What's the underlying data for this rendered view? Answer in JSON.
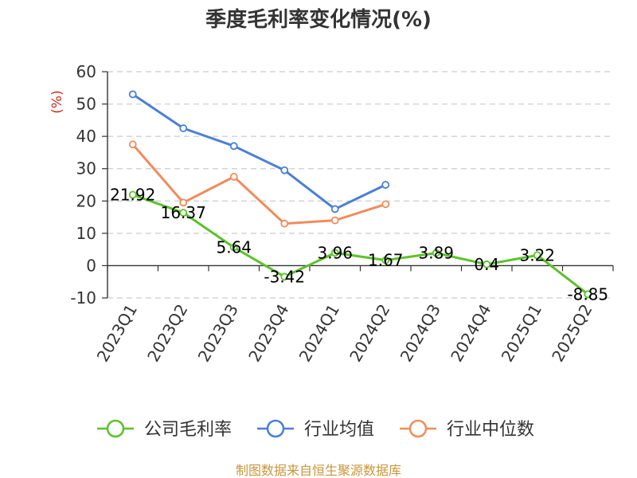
{
  "chart_data": {
    "type": "line",
    "title": "季度毛利率变化情况(%)",
    "ylabel": "(%)",
    "categories": [
      "2023Q1",
      "2023Q2",
      "2023Q3",
      "2023Q4",
      "2024Q1",
      "2024Q2",
      "2024Q3",
      "2024Q4",
      "2025Q1",
      "2025Q2"
    ],
    "ylim": [
      -10,
      60
    ],
    "yticks": [
      -10,
      0,
      10,
      20,
      30,
      40,
      50,
      60
    ],
    "grid": true,
    "legend_position": "bottom",
    "series": [
      {
        "name": "公司毛利率",
        "color": "#5cc22a",
        "values": [
          21.92,
          16.37,
          5.64,
          -3.42,
          3.96,
          1.67,
          3.89,
          0.4,
          3.22,
          -8.85
        ],
        "labels": [
          "21.92",
          "16.37",
          "5.64",
          "-3.42",
          "3.96",
          "1.67",
          "3.89",
          "0.4",
          "3.22",
          "-8.85"
        ]
      },
      {
        "name": "行业均值",
        "color": "#4a7fd8",
        "values": [
          53,
          42.5,
          37,
          29.5,
          17.5,
          25,
          null,
          null,
          null,
          null
        ]
      },
      {
        "name": "行业中位数",
        "color": "#f28b5b",
        "values": [
          37.5,
          19.5,
          27.5,
          13,
          14,
          19,
          null,
          null,
          null,
          null
        ]
      }
    ]
  },
  "footer": {
    "source": "制图数据来自恒生聚源数据库"
  },
  "colors": {
    "ylabel": "#d0281c",
    "footer": "#c8963c",
    "grid": "#cccccc",
    "axis": "#333333"
  }
}
